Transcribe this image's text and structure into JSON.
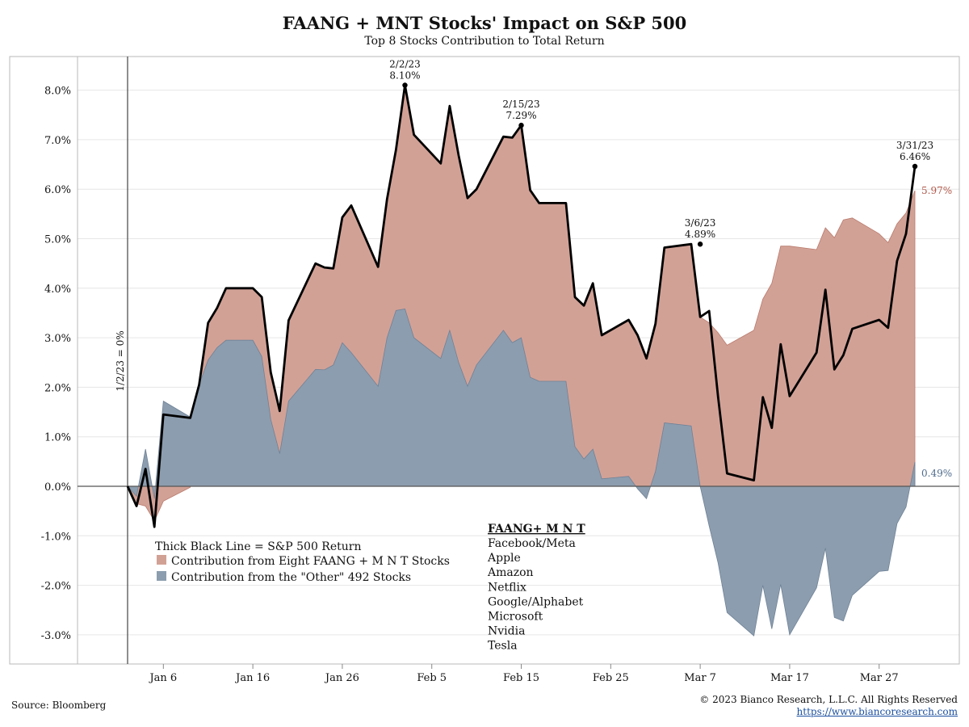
{
  "header": {
    "title": "FAANG + MNT Stocks' Impact on S&P 500",
    "subtitle": "Top 8 Stocks Contribution to Total Return"
  },
  "footer": {
    "source": "Source: Bloomberg",
    "copyright": "© 2023 Bianco Research, L.L.C. All Rights Reserved",
    "url": "https://www.biancoresearch.com"
  },
  "chart_data": {
    "type": "area",
    "title": "FAANG + MNT Stocks' Impact on S&P 500",
    "subtitle": "Top 8 Stocks Contribution to Total Return",
    "xlabel": "",
    "ylabel": "",
    "ylim": [
      -3.6,
      8.9
    ],
    "yticks": [
      "8.0%",
      "7.0%",
      "6.0%",
      "5.0%",
      "4.0%",
      "3.0%",
      "2.0%",
      "1.0%",
      "0.0%",
      "-1.0%",
      "-2.0%",
      "-3.0%"
    ],
    "ytick_values": [
      8,
      7,
      6,
      5,
      4,
      3,
      2,
      1,
      0,
      -1,
      -2,
      -3
    ],
    "xticks": [
      "Jan 6",
      "Jan 16",
      "Jan 26",
      "Feb 5",
      "Feb 15",
      "Feb 25",
      "Mar 7",
      "Mar 17",
      "Mar 27"
    ],
    "xtick_days": [
      5,
      15,
      25,
      35,
      45,
      55,
      65,
      75,
      85
    ],
    "x_axis_note": "days since 1/1/23",
    "x": [
      1,
      2,
      3,
      4,
      5,
      8,
      9,
      10,
      11,
      12,
      15,
      16,
      17,
      18,
      19,
      22,
      23,
      24,
      25,
      26,
      29,
      30,
      31,
      32,
      33,
      36,
      37,
      38,
      39,
      40,
      43,
      44,
      45,
      46,
      47,
      50,
      51,
      52,
      53,
      54,
      57,
      58,
      59,
      60,
      61,
      64,
      65,
      66,
      67,
      68,
      71,
      72,
      73,
      74,
      75,
      78,
      79,
      80,
      81,
      82,
      85,
      86,
      87,
      88,
      89
    ],
    "series": [
      {
        "name": "Thick Black Line = S&P 500 Return",
        "color": "#000000",
        "values": [
          0.0,
          -0.4,
          0.35,
          -0.82,
          1.45,
          1.38,
          2.05,
          3.3,
          3.6,
          4.0,
          4.0,
          3.82,
          2.3,
          1.52,
          3.35,
          4.5,
          4.42,
          4.4,
          5.43,
          5.67,
          4.43,
          5.8,
          6.8,
          8.1,
          7.1,
          6.52,
          7.68,
          6.68,
          5.82,
          6.0,
          7.06,
          7.04,
          7.29,
          5.98,
          5.72,
          5.72,
          3.82,
          3.65,
          4.1,
          3.05,
          3.36,
          3.05,
          2.58,
          3.28,
          4.82,
          4.89,
          3.42,
          3.54,
          1.8,
          0.26,
          0.12,
          1.8,
          1.18,
          2.87,
          1.82,
          2.7,
          3.97,
          2.36,
          2.65,
          3.18,
          3.36,
          3.2,
          4.55,
          5.1,
          6.46
        ]
      },
      {
        "name": "Contribution from Eight FAANG + M N T Stocks",
        "color": "#d2a196",
        "values": [
          0.0,
          -0.35,
          -0.4,
          -0.7,
          -0.3,
          -0.02,
          2.1,
          3.3,
          3.6,
          4.0,
          4.0,
          3.82,
          2.3,
          1.52,
          3.35,
          4.5,
          4.42,
          4.4,
          5.43,
          5.67,
          4.43,
          5.8,
          6.8,
          8.1,
          7.1,
          6.52,
          7.68,
          6.68,
          5.82,
          6.0,
          7.06,
          7.04,
          7.29,
          5.98,
          5.72,
          5.72,
          3.82,
          3.65,
          4.1,
          3.05,
          3.36,
          3.05,
          2.58,
          3.28,
          4.82,
          4.89,
          3.42,
          3.3,
          3.1,
          2.85,
          3.15,
          3.78,
          4.1,
          4.85,
          4.85,
          4.78,
          5.22,
          5.02,
          5.38,
          5.42,
          5.1,
          4.92,
          5.3,
          5.52,
          5.97
        ]
      },
      {
        "name": "Contribution from the \"Other\" 492 Stocks",
        "color": "#8c9daf",
        "values": [
          0.0,
          -0.2,
          0.75,
          -0.25,
          1.72,
          1.4,
          2.05,
          2.55,
          2.8,
          2.95,
          2.95,
          2.62,
          1.35,
          0.66,
          1.72,
          2.36,
          2.35,
          2.45,
          2.9,
          2.7,
          2.02,
          3.0,
          3.55,
          3.58,
          3.0,
          2.58,
          3.15,
          2.5,
          2.02,
          2.45,
          3.15,
          2.9,
          3.0,
          2.2,
          2.12,
          2.12,
          0.8,
          0.55,
          0.75,
          0.15,
          0.2,
          -0.05,
          -0.25,
          0.3,
          1.28,
          1.22,
          0.0,
          -0.8,
          -1.55,
          -2.55,
          -3.02,
          -2.0,
          -2.88,
          -1.98,
          -3.0,
          -2.05,
          -1.25,
          -2.65,
          -2.72,
          -2.2,
          -1.72,
          -1.7,
          -0.75,
          -0.42,
          0.49
        ]
      }
    ],
    "annotations": [
      {
        "x": 32,
        "y": 8.1,
        "date": "2/2/23",
        "value": "8.10%"
      },
      {
        "x": 45,
        "y": 7.29,
        "date": "2/15/23",
        "value": "7.29%"
      },
      {
        "x": 65,
        "y": 4.89,
        "date": "3/6/23",
        "value": "4.89%"
      },
      {
        "x": 89,
        "y": 6.46,
        "date": "3/31/23",
        "value": "6.46%"
      }
    ],
    "end_labels": {
      "faang": "5.97%",
      "other": "0.49%"
    },
    "baseline_label": "1/2/23 = 0%",
    "legend": {
      "placement": "bottom-center",
      "items": [
        "Thick Black Line = S&P 500 Return",
        "Contribution from Eight FAANG + M N T Stocks",
        "Contribution from the \"Other\" 492 Stocks"
      ]
    },
    "faang_box": {
      "heading": "FAANG+ M N T",
      "names": [
        "Facebook/Meta",
        "Apple",
        "Amazon",
        "Netflix",
        "Google/Alphabet",
        "Microsoft",
        "Nvidia",
        "Tesla"
      ]
    },
    "grid": true
  }
}
